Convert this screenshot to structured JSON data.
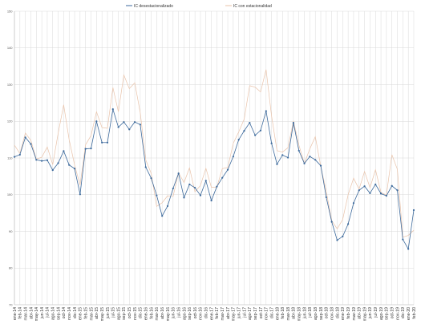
{
  "chart_data": {
    "type": "line",
    "title": "",
    "xlabel": "",
    "ylabel": "",
    "grid": true,
    "legend_position": "top",
    "ylim": [
      70,
      150
    ],
    "ytick_step": 10,
    "yticks": [
      "70",
      "80",
      "90",
      "100",
      "110",
      "120",
      "130",
      "140",
      "150"
    ],
    "x": [
      "ene-14",
      "feb-14",
      "mar-14",
      "abr-14",
      "may-14",
      "jun-14",
      "jul-14",
      "ago-14",
      "sep-14",
      "oct-14",
      "nov-14",
      "dic-14",
      "ene-15",
      "feb-15",
      "mar-15",
      "abr-15",
      "may-15",
      "jun-15",
      "jul-15",
      "ago-15",
      "sep-15",
      "oct-15",
      "nov-15",
      "dic-15",
      "ene-16",
      "feb-16",
      "mar-16",
      "abr-16",
      "may-16",
      "jun-16",
      "jul-16",
      "ago-16",
      "sep-16",
      "oct-16",
      "nov-16",
      "dic-16",
      "ene-17",
      "feb-17",
      "mar-17",
      "abr-17",
      "may-17",
      "jun-17",
      "jul-17",
      "ago-17",
      "sep-17",
      "oct-17",
      "nov-17",
      "dic-17",
      "ene-18",
      "feb-18",
      "mar-18",
      "abr-18",
      "may-18",
      "jun-18",
      "jul-18",
      "ago-18",
      "sep-18",
      "oct-18",
      "nov-18",
      "dic-18",
      "ene-19",
      "feb-19",
      "mar-19",
      "abr-19",
      "may-19",
      "jun-19",
      "jul-19",
      "ago-19",
      "sep-19",
      "oct-19",
      "nov-19",
      "dic-19",
      "ene-20",
      "feb-20"
    ],
    "series": [
      {
        "name": "IC desestacionalizado",
        "color": "#3d6a9c",
        "values": [
          110.3,
          110.9,
          115.6,
          113.8,
          109.5,
          109.2,
          109.4,
          106.7,
          108.6,
          111.9,
          108.1,
          107.1,
          100.1,
          112.5,
          112.6,
          120.0,
          114.2,
          114.2,
          123.3,
          118.4,
          119.8,
          117.8,
          119.8,
          119.1,
          107.5,
          104.5,
          99.8,
          94.2,
          96.9,
          101.7,
          105.8,
          99.2,
          102.8,
          101.9,
          99.8,
          103.8,
          98.4,
          102.2,
          104.6,
          106.8,
          110.4,
          115.0,
          117.4,
          119.6,
          116.2,
          117.5,
          122.8,
          114.0,
          108.3,
          110.8,
          110.1,
          119.6,
          112.0,
          108.5,
          110.4,
          109.5,
          107.9,
          99.3,
          92.6,
          87.6,
          88.6,
          92.0,
          97.7,
          101.2,
          102.3,
          100.4,
          102.8,
          100.3,
          99.7,
          102.4,
          101.2,
          87.8,
          85.2,
          95.8
        ]
      },
      {
        "name": "IC con estacionalidad",
        "color": "#e9c3aa",
        "values": [
          113.5,
          111.2,
          116.8,
          114.8,
          109.7,
          110.2,
          113.0,
          108.2,
          116.8,
          124.5,
          115.0,
          108.1,
          102.6,
          113.6,
          116.1,
          122.6,
          118.3,
          118.1,
          129.2,
          122.6,
          132.6,
          128.9,
          130.5,
          122.3,
          109.5,
          105.8,
          96.8,
          97.8,
          99.7,
          99.5,
          106.0,
          103.3,
          107.3,
          100.8,
          102.5,
          107.2,
          102.0,
          102.0,
          107.1,
          107.4,
          114.0,
          117.1,
          120.6,
          129.7,
          129.3,
          128.0,
          134.1,
          121.5,
          112.0,
          111.6,
          112.8,
          120.1,
          113.5,
          108.5,
          112.5,
          115.8,
          107.7,
          100.9,
          92.9,
          90.7,
          93.2,
          100.0,
          104.5,
          101.5,
          106.3,
          101.9,
          106.8,
          100.6,
          99.9,
          110.9,
          106.9,
          88.4,
          88.9,
          90.3
        ]
      }
    ]
  }
}
